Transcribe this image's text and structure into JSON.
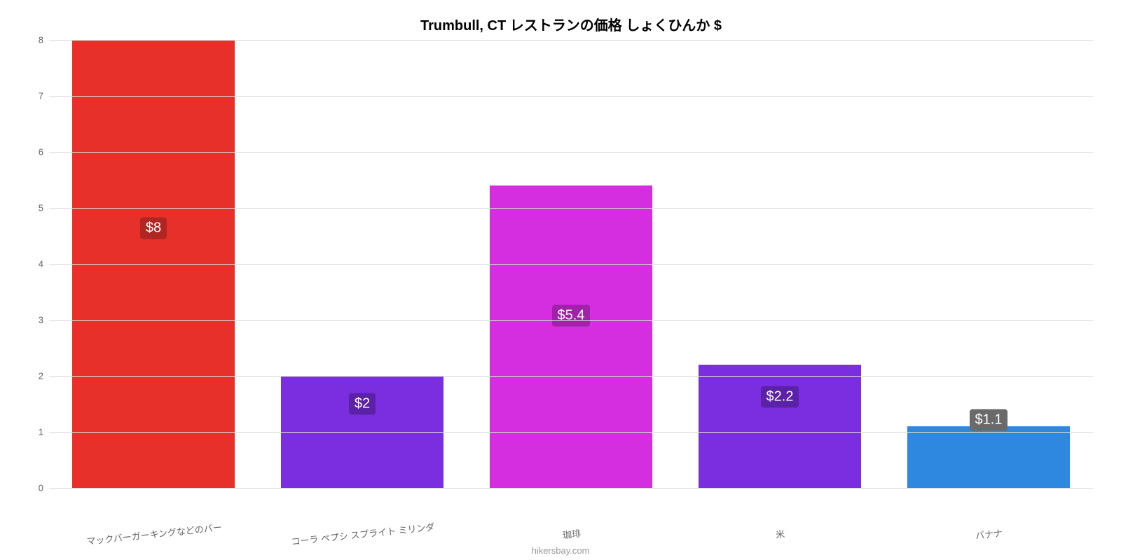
{
  "chart": {
    "type": "bar",
    "title": "Trumbull, CT レストランの価格 しょくひんか $",
    "title_fontsize": 20,
    "title_color": "#000000",
    "background_color": "#ffffff",
    "ylim": [
      0,
      8
    ],
    "yticks": [
      0,
      1,
      2,
      3,
      4,
      5,
      6,
      7,
      8
    ],
    "grid_color": "#dddddd",
    "axis_label_color": "#666666",
    "axis_label_fontsize": 13,
    "bar_width_ratio": 0.78,
    "value_badge_fontsize": 20,
    "value_badge_text_color": "#ffffff",
    "value_badge_radius": 4,
    "x_label_rotate_deg": -6,
    "attribution": "hikersbay.com",
    "attribution_color": "#999999",
    "categories": [
      "マックバーガーキングなどのバー",
      "コーラ ペプシ スプライト ミリンダ",
      "珈琲",
      "米",
      "バナナ"
    ],
    "values": [
      8,
      2,
      5.4,
      2.2,
      1.1
    ],
    "value_labels": [
      "$8",
      "$2",
      "$5.4",
      "$2.2",
      "$1.1"
    ],
    "bar_colors": [
      "#e7302a",
      "#7a2ee0",
      "#d42ee0",
      "#7a2ee0",
      "#2e88e0"
    ],
    "badge_colors": [
      "#b02622",
      "#5b22a8",
      "#9f22a8",
      "#5b22a8",
      "#6a6a6a"
    ],
    "value_badge_top_pct": [
      42,
      25,
      43,
      26,
      -10
    ]
  }
}
